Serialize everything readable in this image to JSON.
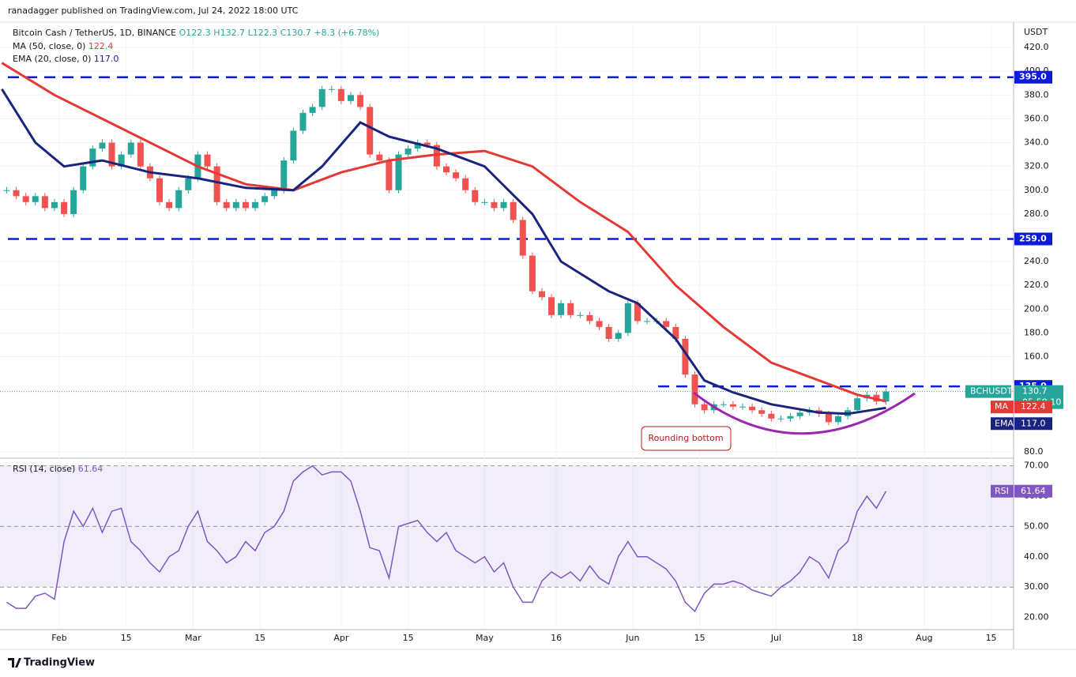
{
  "chart_data": {
    "type": "candlestick",
    "header": "ranadagger published on TradingView.com, Jul 24, 2022 18:00 UTC",
    "title": "Bitcoin Cash / TetherUS, 1D, BINANCE",
    "ohlc": [
      "O122.3",
      "H132.7",
      "L122.3",
      "C130.7",
      "+8.3 (+6.78%)"
    ],
    "currency": "USDT",
    "x": [
      20,
      22,
      24,
      26,
      28,
      30,
      32,
      34,
      36,
      38,
      40,
      42,
      44,
      46,
      48,
      50,
      52,
      54,
      56,
      58,
      60,
      62,
      64,
      66,
      68,
      70,
      72,
      74,
      76,
      78,
      80,
      82,
      84,
      86,
      88,
      90,
      92,
      94,
      96,
      98,
      100,
      102,
      104,
      106,
      108,
      110,
      112,
      114,
      116,
      118,
      120,
      122,
      124,
      126,
      128,
      130,
      132,
      134,
      136,
      138,
      140,
      142,
      144,
      146,
      148,
      150,
      152,
      154,
      156,
      158,
      160,
      162,
      164,
      166,
      168,
      170,
      172,
      174,
      176,
      178,
      180,
      182,
      184,
      186,
      188,
      190,
      192,
      194,
      196,
      198,
      200,
      202,
      204
    ],
    "xlim": [
      18.6,
      230.7
    ],
    "xticks": [
      {
        "value": 31,
        "label": "Feb"
      },
      {
        "value": 45,
        "label": "15"
      },
      {
        "value": 59,
        "label": "Mar"
      },
      {
        "value": 73,
        "label": "15"
      },
      {
        "value": 90,
        "label": "Apr"
      },
      {
        "value": 104,
        "label": "15"
      },
      {
        "value": 120,
        "label": "May"
      },
      {
        "value": 135,
        "label": "16"
      },
      {
        "value": 151,
        "label": "Jun"
      },
      {
        "value": 165,
        "label": "15"
      },
      {
        "value": 181,
        "label": "Jul"
      },
      {
        "value": 198,
        "label": "18"
      },
      {
        "value": 212,
        "label": "Aug"
      },
      {
        "value": 226,
        "label": "15"
      }
    ],
    "ylim": [
      76,
      440
    ],
    "yticks": [
      {
        "value": 80,
        "label": "80.0"
      },
      {
        "value": 160,
        "label": "160.0"
      },
      {
        "value": 180,
        "label": "180.0"
      },
      {
        "value": 200,
        "label": "200.0"
      },
      {
        "value": 220,
        "label": "220.0"
      },
      {
        "value": 240,
        "label": "240.0"
      },
      {
        "value": 280,
        "label": "280.0"
      },
      {
        "value": 300,
        "label": "300.0"
      },
      {
        "value": 320,
        "label": "320.0"
      },
      {
        "value": 340,
        "label": "340.0"
      },
      {
        "value": 360,
        "label": "360.0"
      },
      {
        "value": 380,
        "label": "380.0"
      },
      {
        "value": 400,
        "label": "400.0"
      },
      {
        "value": 420,
        "label": "420.0"
      }
    ],
    "series": [
      {
        "name": "BCHUSDT",
        "up_color": "#26a69a",
        "down_color": "#ef5350",
        "countdown": "05:59:10",
        "values": [
          300,
          295,
          290,
          295,
          285,
          290,
          280,
          300,
          320,
          335,
          340,
          320,
          330,
          340,
          320,
          310,
          290,
          285,
          300,
          310,
          330,
          320,
          290,
          285,
          290,
          285,
          290,
          295,
          300,
          325,
          350,
          365,
          370,
          385,
          385,
          375,
          380,
          370,
          330,
          325,
          300,
          330,
          335,
          340,
          338,
          320,
          315,
          310,
          300,
          290,
          290,
          285,
          290,
          275,
          245,
          215,
          210,
          195,
          205,
          195,
          195,
          190,
          185,
          175,
          180,
          205,
          190,
          190,
          190,
          185,
          175,
          145,
          120,
          115,
          120,
          120,
          118,
          118,
          115,
          112,
          108,
          108,
          110,
          113,
          115,
          112,
          105,
          110,
          115,
          125,
          128,
          122.3,
          130.7
        ]
      }
    ],
    "ma": {
      "name": "MA (50, close, 0)",
      "short": "MA",
      "legend_value": "122.4",
      "color": "#e53935",
      "x": [
        19,
        30,
        40,
        50,
        60,
        70,
        80,
        90,
        100,
        110,
        120,
        130,
        140,
        150,
        160,
        170,
        180,
        190,
        198,
        204
      ],
      "values": [
        407,
        380,
        360,
        340,
        320,
        305,
        300,
        315,
        325,
        330,
        333,
        320,
        290,
        265,
        220,
        185,
        155,
        140,
        128,
        122.4
      ]
    },
    "ema": {
      "name": "EMA (20, close, 0)",
      "short": "EMA",
      "legend_value": "117.0",
      "color": "#1a237e",
      "x": [
        19,
        26,
        32,
        40,
        50,
        60,
        70,
        80,
        86,
        94,
        100,
        110,
        120,
        130,
        136,
        146,
        152,
        160,
        166,
        172,
        180,
        190,
        196,
        204
      ],
      "values": [
        385,
        340,
        320,
        325,
        315,
        310,
        302,
        300,
        320,
        357,
        345,
        335,
        320,
        280,
        240,
        215,
        205,
        175,
        140,
        130,
        120,
        113,
        112,
        117
      ]
    },
    "levels": [
      {
        "value": 395,
        "label": "395.0"
      },
      {
        "value": 259,
        "label": "259.0"
      },
      {
        "value": 135,
        "label": "135.0"
      }
    ],
    "annotation": "Rounding bottom",
    "rsi": {
      "name": "RSI (14, close)",
      "short": "RSI",
      "legend_value": "61.64",
      "color": "#7e57c2",
      "ylim": [
        16.5,
        72
      ],
      "yticks": [
        {
          "value": 20,
          "label": "20.00"
        },
        {
          "value": 30,
          "label": "30.00"
        },
        {
          "value": 40,
          "label": "40.00"
        },
        {
          "value": 50,
          "label": "50.00"
        },
        {
          "value": 60,
          "label": "60.00"
        },
        {
          "value": 70,
          "label": "70.00"
        }
      ],
      "values": [
        25,
        23,
        23,
        27,
        28,
        26,
        45,
        55,
        50,
        56,
        48,
        55,
        56,
        45,
        42,
        38,
        35,
        40,
        42,
        50,
        55,
        45,
        42,
        38,
        40,
        45,
        42,
        48,
        50,
        55,
        65,
        68,
        70,
        67,
        68,
        68,
        65,
        55,
        43,
        42,
        33,
        50,
        51,
        52,
        48,
        45,
        48,
        42,
        40,
        38,
        40,
        35,
        38,
        30,
        25,
        25,
        32,
        35,
        33,
        35,
        32,
        37,
        33,
        31,
        40,
        45,
        40,
        40,
        38,
        36,
        32,
        25,
        22,
        28,
        31,
        31,
        32,
        31,
        29,
        28,
        27,
        30,
        32,
        35,
        40,
        38,
        33,
        42,
        45,
        55,
        60,
        56,
        61.64
      ]
    },
    "watermark": "TradingView"
  }
}
